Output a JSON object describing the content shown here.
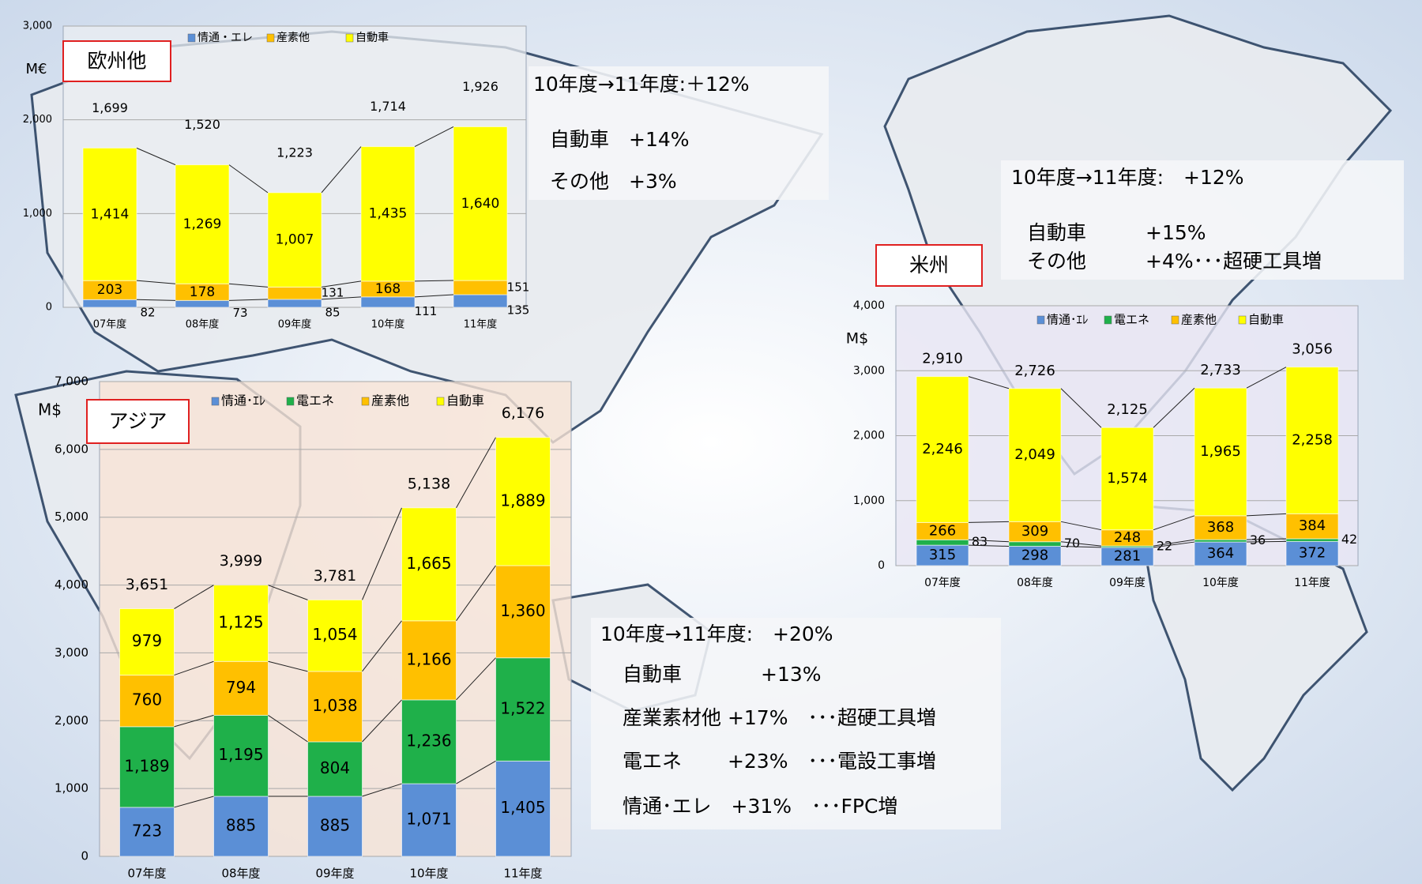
{
  "chart_data": [
    {
      "type": "bar",
      "stacked": true,
      "title": "欧州他",
      "ylabel": "M€",
      "categories": [
        "07年度",
        "08年度",
        "09年度",
        "10年度",
        "11年度"
      ],
      "series": [
        {
          "name": "情通・エレ",
          "color": "#5b8fd6",
          "values": [
            82,
            73,
            85,
            111,
            135
          ]
        },
        {
          "name": "産素他",
          "color": "#ffc000",
          "values": [
            203,
            178,
            131,
            168,
            151
          ]
        },
        {
          "name": "自動車",
          "color": "#ffff00",
          "values": [
            1414,
            1269,
            1007,
            1435,
            1640
          ],
          "value_labels": [
            "1,414",
            "1,269",
            "1,007",
            "1,435",
            "1,640"
          ]
        }
      ],
      "totals": [
        1699,
        1520,
        1223,
        1714,
        1926
      ],
      "total_labels": [
        "1,699",
        "1,520",
        "1,223",
        "1,714",
        "1,926"
      ],
      "ylim": [
        0,
        3000
      ],
      "yticks": [
        0,
        {
          "value": 1000,
          "label": "1,000"
        },
        {
          "value": 2000,
          "label": "2,000"
        },
        {
          "value": 3000,
          "label": "3,000"
        }
      ],
      "grid": true,
      "annotations": [
        "10年度→11年度:＋12%",
        "自動車　+14%",
        "その他　+3%"
      ]
    },
    {
      "type": "bar",
      "stacked": true,
      "title": "アジア",
      "ylabel": "M$",
      "categories": [
        "07年度",
        "08年度",
        "09年度",
        "10年度",
        "11年度"
      ],
      "series": [
        {
          "name": "情通･ｴﾚ",
          "color": "#5b8fd6",
          "values": [
            723,
            885,
            885,
            1071,
            1405
          ],
          "value_labels": [
            "723",
            "885",
            "885",
            "1,071",
            "1,405"
          ]
        },
        {
          "name": "電エネ",
          "color": "#1fb04a",
          "values": [
            1189,
            1195,
            804,
            1236,
            1522
          ],
          "value_labels": [
            "1,189",
            "1,195",
            "804",
            "1,236",
            "1,522"
          ]
        },
        {
          "name": "産素他",
          "color": "#ffc000",
          "values": [
            760,
            794,
            1038,
            1166,
            1360
          ],
          "value_labels": [
            "760",
            "794",
            "1,038",
            "1,166",
            "1,360"
          ]
        },
        {
          "name": "自動車",
          "color": "#ffff00",
          "values": [
            979,
            1125,
            1054,
            1665,
            1889
          ],
          "value_labels": [
            "979",
            "1,125",
            "1,054",
            "1,665",
            "1,889"
          ]
        }
      ],
      "totals": [
        3651,
        3999,
        3781,
        5138,
        6176
      ],
      "total_labels": [
        "3,651",
        "3,999",
        "3,781",
        "5,138",
        "6,176"
      ],
      "ylim": [
        0,
        7000
      ],
      "yticks": [
        0,
        {
          "value": 1000,
          "label": "1,000"
        },
        {
          "value": 2000,
          "label": "2,000"
        },
        {
          "value": 3000,
          "label": "3,000"
        },
        {
          "value": 4000,
          "label": "4,000"
        },
        {
          "value": 5000,
          "label": "5,000"
        },
        {
          "value": 6000,
          "label": "6,000"
        },
        {
          "value": 7000,
          "label": "7,000"
        }
      ],
      "grid": true,
      "annotations": [
        "10年度→11年度:　+20%",
        "自動車　　　　+13%",
        "産業素材他 +17%　･･･超硬工具増",
        "電エネ　　 +23%　･･･電設工事増",
        "情通･エレ　+31%　･･･FPC増"
      ]
    },
    {
      "type": "bar",
      "stacked": true,
      "title": "米州",
      "ylabel": "M$",
      "categories": [
        "07年度",
        "08年度",
        "09年度",
        "10年度",
        "11年度"
      ],
      "series": [
        {
          "name": "情通･ｴﾚ",
          "color": "#5b8fd6",
          "values": [
            315,
            298,
            281,
            364,
            372
          ]
        },
        {
          "name": "電エネ",
          "color": "#1fb04a",
          "values": [
            83,
            70,
            22,
            36,
            42
          ]
        },
        {
          "name": "産素他",
          "color": "#ffc000",
          "values": [
            266,
            309,
            248,
            368,
            384
          ]
        },
        {
          "name": "自動車",
          "color": "#ffff00",
          "values": [
            2246,
            2049,
            1574,
            1965,
            2258
          ],
          "value_labels": [
            "2,246",
            "2,049",
            "1,574",
            "1,965",
            "2,258"
          ]
        }
      ],
      "totals": [
        2910,
        2726,
        2125,
        2733,
        3056
      ],
      "total_labels": [
        "2,910",
        "2,726",
        "2,125",
        "2,733",
        "3,056"
      ],
      "ylim": [
        0,
        4000
      ],
      "yticks": [
        0,
        {
          "value": 1000,
          "label": "1,000"
        },
        {
          "value": 2000,
          "label": "2,000"
        },
        {
          "value": 3000,
          "label": "3,000"
        },
        {
          "value": 4000,
          "label": "4,000"
        }
      ],
      "grid": true,
      "annotations": [
        "10年度→11年度:　+12%",
        "自動車　　　+15%",
        "その他　　　+4%･･･超硬工具増"
      ]
    }
  ]
}
